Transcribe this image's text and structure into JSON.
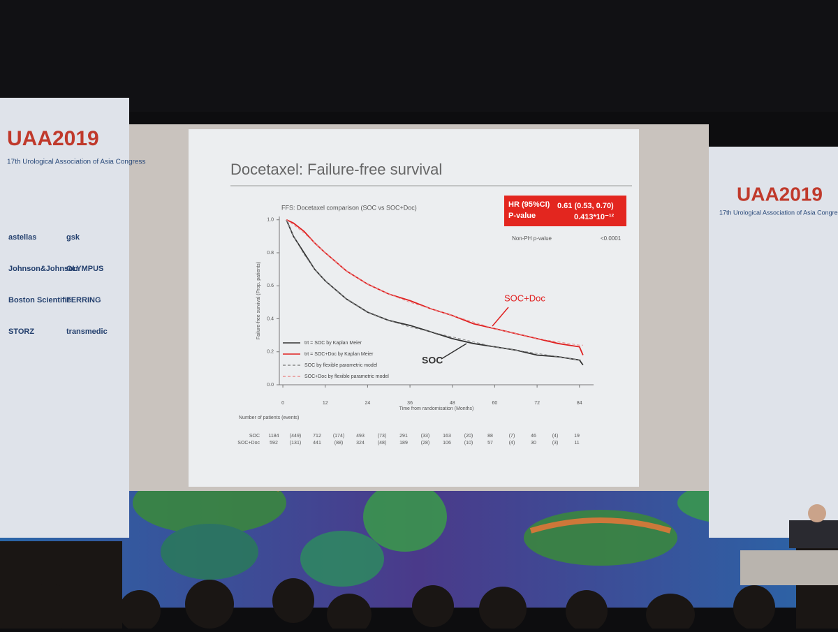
{
  "left_banner": {
    "logo": "UAA2019",
    "subtitle": "17th Urological Association of Asia Congress",
    "sponsors": [
      "astellas",
      "gsk",
      "Johnson&Johnson",
      "OLYMPUS",
      "Boston Scientific",
      "FERRING",
      "STORZ",
      "transmedic"
    ]
  },
  "right_banner": {
    "logo": "UAA2019",
    "subtitle": "17th Urological Association of Asia Congress"
  },
  "slide": {
    "title": "Docetaxel: Failure-free survival"
  },
  "chart_data": {
    "type": "line",
    "title": "FFS: Docetaxel comparison (SOC vs SOC+Doc)",
    "x_label": "Time from randomisation (Months)",
    "y_label": "Failure-free survival (Prop. patients)",
    "x": [
      1,
      3,
      6,
      9,
      12,
      18,
      24,
      30,
      36,
      42,
      48,
      54,
      60,
      66,
      72,
      78,
      84,
      85
    ],
    "series": [
      {
        "name": "trt = SOC by Kaplan Meier",
        "color": "#333333",
        "dashed": false,
        "values": [
          1.0,
          0.9,
          0.8,
          0.7,
          0.63,
          0.52,
          0.44,
          0.39,
          0.36,
          0.32,
          0.28,
          0.25,
          0.23,
          0.21,
          0.18,
          0.17,
          0.15,
          0.12
        ]
      },
      {
        "name": "trt = SOC+Doc by Kaplan Meier",
        "color": "#e02020",
        "dashed": false,
        "values": [
          1.0,
          0.98,
          0.93,
          0.86,
          0.8,
          0.69,
          0.61,
          0.55,
          0.51,
          0.46,
          0.42,
          0.37,
          0.34,
          0.31,
          0.28,
          0.25,
          0.23,
          0.18
        ]
      },
      {
        "name": "SOC by flexible parametric model",
        "color": "#888888",
        "dashed": true,
        "values": [
          1.0,
          0.9,
          0.79,
          0.7,
          0.63,
          0.52,
          0.44,
          0.39,
          0.35,
          0.32,
          0.29,
          0.26,
          0.23,
          0.21,
          0.19,
          0.17,
          0.15,
          0.15
        ]
      },
      {
        "name": "SOC+Doc by flexible parametric model",
        "color": "#e89090",
        "dashed": true,
        "values": [
          1.0,
          0.97,
          0.92,
          0.86,
          0.8,
          0.69,
          0.61,
          0.55,
          0.5,
          0.46,
          0.42,
          0.38,
          0.34,
          0.31,
          0.28,
          0.26,
          0.24,
          0.24
        ]
      }
    ],
    "xlim": [
      -1,
      88
    ],
    "ylim": [
      0,
      1.02
    ],
    "xticks": [
      0,
      12,
      24,
      36,
      48,
      60,
      72,
      84
    ],
    "yticks": [
      {
        "value": 0,
        "label": "0.0"
      },
      {
        "value": 0.2,
        "label": "0.2"
      },
      {
        "value": 0.4,
        "label": "0.4"
      },
      {
        "value": 0.6,
        "label": "0.6"
      },
      {
        "value": 0.8,
        "label": "0.8"
      },
      {
        "value": 1,
        "label": "1.0"
      }
    ],
    "legend": "lower-left",
    "annotations": [
      "SOC+Doc",
      "SOC"
    ],
    "stats_box": {
      "hr_label": "HR (95%CI)",
      "hr_value": "0.61 (0.53, 0.70)",
      "p_label": "P-value",
      "p_value": "0.413*10⁻¹²"
    },
    "non_ph": {
      "label": "Non-PH p-value",
      "value": "<0.0001"
    },
    "risk_table": {
      "title": "Number of patients (events)",
      "rows": [
        {
          "name": "SOC",
          "cells": [
            "1184",
            "(449)",
            "712",
            "(174)",
            "493",
            "(73)",
            "291",
            "(33)",
            "163",
            "(20)",
            "88",
            "(7)",
            "46",
            "(4)",
            "19"
          ]
        },
        {
          "name": "SOC+Doc",
          "cells": [
            "592",
            "(131)",
            "441",
            "(88)",
            "324",
            "(48)",
            "189",
            "(28)",
            "106",
            "(10)",
            "57",
            "(4)",
            "30",
            "(3)",
            "11"
          ]
        }
      ]
    }
  }
}
